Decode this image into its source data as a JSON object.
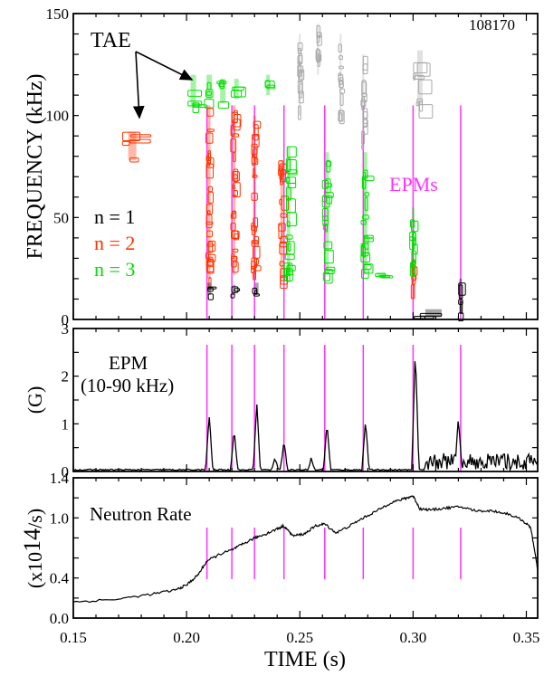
{
  "figure": {
    "shot_number": "108170",
    "xlabel": "TIME (s)",
    "x_ticks": [
      "0.15",
      "0.20",
      "0.25",
      "0.30",
      "0.35"
    ],
    "marker_color": "#ff33ff",
    "marker_times": [
      0.209,
      0.22,
      0.23,
      0.243,
      0.261,
      0.278,
      0.3,
      0.321
    ]
  },
  "chart_data": [
    {
      "type": "heatmap",
      "panel": "spectrogram",
      "ylabel": "FREQUENCY (kHz)",
      "xlim": [
        0.15,
        0.355
      ],
      "ylim": [
        0,
        150
      ],
      "y_ticks": [
        "0",
        "50",
        "100",
        "150"
      ],
      "annotations": {
        "tae": "TAE",
        "epms": "EPMs"
      },
      "legend": [
        {
          "label": "n = 1",
          "color": "#000000"
        },
        {
          "label": "n = 2",
          "color": "#ff3300"
        },
        {
          "label": "n = 3",
          "color": "#00dd00"
        }
      ],
      "bursts": [
        {
          "t": 0.176,
          "width": 0.009,
          "f_low": 78,
          "f_high": 92,
          "n": 2
        },
        {
          "t": 0.203,
          "width": 0.006,
          "f_low": 105,
          "f_high": 120,
          "n": 3
        },
        {
          "t": 0.21,
          "width": 0.006,
          "f_low": 108,
          "f_high": 120,
          "n": 3
        },
        {
          "t": 0.216,
          "width": 0.006,
          "f_low": 106,
          "f_high": 118,
          "n": 3
        },
        {
          "t": 0.222,
          "width": 0.005,
          "f_low": 108,
          "f_high": 118,
          "n": 3
        },
        {
          "t": 0.236,
          "width": 0.004,
          "f_low": 110,
          "f_high": 120,
          "n": 3
        },
        {
          "t": 0.21,
          "width": 0.003,
          "f_low": 20,
          "f_high": 105,
          "n": 2
        },
        {
          "t": 0.221,
          "width": 0.003,
          "f_low": 22,
          "f_high": 105,
          "n": 2
        },
        {
          "t": 0.23,
          "width": 0.003,
          "f_low": 20,
          "f_high": 100,
          "n": 2
        },
        {
          "t": 0.242,
          "width": 0.003,
          "f_low": 20,
          "f_high": 78,
          "n": 2
        },
        {
          "t": 0.3,
          "width": 0.002,
          "f_low": 10,
          "f_high": 30,
          "n": 2
        },
        {
          "t": 0.245,
          "width": 0.004,
          "f_low": 22,
          "f_high": 85,
          "n": 3
        },
        {
          "t": 0.262,
          "width": 0.004,
          "f_low": 22,
          "f_high": 82,
          "n": 3
        },
        {
          "t": 0.279,
          "width": 0.004,
          "f_low": 22,
          "f_high": 82,
          "n": 3
        },
        {
          "t": 0.286,
          "width": 0.01,
          "f_low": 21,
          "f_high": 23,
          "n": 3
        },
        {
          "t": 0.3,
          "width": 0.003,
          "f_low": 25,
          "f_high": 55,
          "n": 3
        },
        {
          "t": 0.21,
          "width": 0.004,
          "f_low": 12,
          "f_high": 18,
          "n": 1
        },
        {
          "t": 0.221,
          "width": 0.003,
          "f_low": 12,
          "f_high": 17,
          "n": 1
        },
        {
          "t": 0.231,
          "width": 0.004,
          "f_low": 12,
          "f_high": 18,
          "n": 1
        },
        {
          "t": 0.309,
          "width": 0.018,
          "f_low": 1,
          "f_high": 5,
          "n": 1
        },
        {
          "t": 0.321,
          "width": 0.003,
          "f_low": 3,
          "f_high": 20,
          "n": 1
        },
        {
          "t": 0.25,
          "width": 0.002,
          "f_low": 100,
          "f_high": 140,
          "n": 0
        },
        {
          "t": 0.258,
          "width": 0.002,
          "f_low": 120,
          "f_high": 145,
          "n": 0
        },
        {
          "t": 0.268,
          "width": 0.002,
          "f_low": 100,
          "f_high": 140,
          "n": 0
        },
        {
          "t": 0.278,
          "width": 0.002,
          "f_low": 85,
          "f_high": 130,
          "n": 0
        },
        {
          "t": 0.303,
          "width": 0.006,
          "f_low": 105,
          "f_high": 132,
          "n": 0
        }
      ]
    },
    {
      "type": "line",
      "panel": "epm_amplitude",
      "ylabel": "(G)",
      "annotation": "EPM\n(10-90 kHz)",
      "xlim": [
        0.15,
        0.355
      ],
      "ylim": [
        0,
        3
      ],
      "y_ticks": [
        "0",
        "1",
        "2",
        "3"
      ],
      "baseline": 0.02,
      "noise_from": 0.305,
      "noise_level": 0.35,
      "peaks": [
        {
          "t": 0.21,
          "value": 1.15
        },
        {
          "t": 0.221,
          "value": 0.85
        },
        {
          "t": 0.231,
          "value": 1.4
        },
        {
          "t": 0.239,
          "value": 0.25
        },
        {
          "t": 0.243,
          "value": 0.62
        },
        {
          "t": 0.255,
          "value": 0.25
        },
        {
          "t": 0.262,
          "value": 0.98
        },
        {
          "t": 0.279,
          "value": 1.03
        },
        {
          "t": 0.301,
          "value": 2.55
        },
        {
          "t": 0.32,
          "value": 1.1
        }
      ]
    },
    {
      "type": "line",
      "panel": "neutron_rate",
      "ylabel": "(x10¹⁴/s)",
      "annotation": "Neutron Rate",
      "xlim": [
        0.15,
        0.355
      ],
      "ylim": [
        0,
        1.4
      ],
      "y_ticks": [
        "0.0",
        "0.4",
        "1.0",
        "1.4"
      ],
      "x": [
        0.15,
        0.17,
        0.185,
        0.195,
        0.2,
        0.205,
        0.209,
        0.215,
        0.22,
        0.225,
        0.23,
        0.235,
        0.24,
        0.243,
        0.247,
        0.252,
        0.257,
        0.261,
        0.266,
        0.272,
        0.278,
        0.284,
        0.29,
        0.296,
        0.3,
        0.303,
        0.308,
        0.315,
        0.321,
        0.328,
        0.335,
        0.342,
        0.348,
        0.352,
        0.355
      ],
      "y": [
        0.16,
        0.19,
        0.24,
        0.28,
        0.33,
        0.43,
        0.57,
        0.64,
        0.68,
        0.74,
        0.8,
        0.84,
        0.89,
        0.92,
        0.82,
        0.84,
        0.92,
        0.94,
        0.85,
        0.92,
        1.0,
        1.07,
        1.15,
        1.19,
        1.22,
        1.09,
        1.08,
        1.1,
        1.11,
        1.07,
        1.07,
        1.04,
        0.98,
        0.9,
        0.48
      ]
    }
  ]
}
